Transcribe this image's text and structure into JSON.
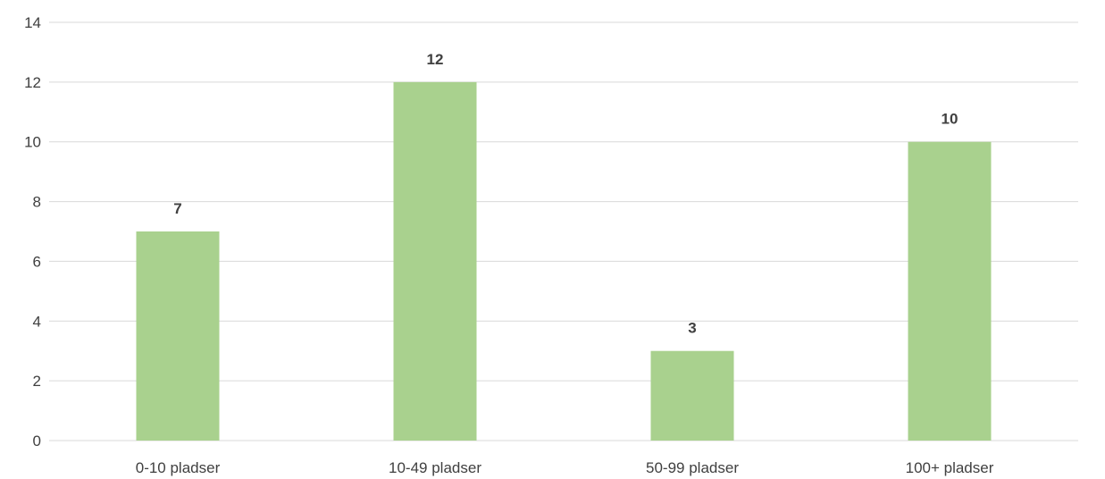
{
  "chart_data": {
    "type": "bar",
    "categories": [
      "0-10 pladser",
      "10-49 pladser",
      "50-99 pladser",
      "100+ pladser"
    ],
    "values": [
      7,
      12,
      3,
      10
    ],
    "y_ticks": [
      "0",
      "2",
      "4",
      "6",
      "8",
      "10",
      "12",
      "14"
    ],
    "ylim": [
      0,
      14
    ],
    "title": "",
    "xlabel": "",
    "ylabel": "",
    "grid": true,
    "legend": "none",
    "data_labels": true,
    "bar_color": "#a9d18e"
  }
}
